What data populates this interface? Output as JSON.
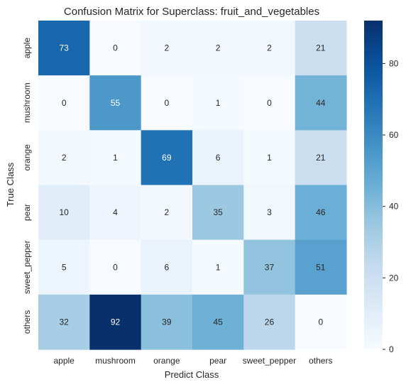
{
  "chart_data": {
    "type": "heatmap",
    "title": "Confusion Matrix for Superclass: fruit_and_vegetables",
    "xlabel": "Predict Class",
    "ylabel": "True Class",
    "x_categories": [
      "apple",
      "mushroom",
      "orange",
      "pear",
      "sweet_pepper",
      "others"
    ],
    "y_categories": [
      "apple",
      "mushroom",
      "orange",
      "pear",
      "sweet_pepper",
      "others"
    ],
    "values": [
      [
        73,
        0,
        2,
        2,
        2,
        21
      ],
      [
        0,
        55,
        0,
        1,
        0,
        44
      ],
      [
        2,
        1,
        69,
        6,
        1,
        21
      ],
      [
        10,
        4,
        2,
        35,
        3,
        46
      ],
      [
        5,
        0,
        6,
        1,
        37,
        51
      ],
      [
        32,
        92,
        39,
        45,
        26,
        0
      ]
    ],
    "colormap": "Blues",
    "vmin": 0,
    "vmax": 92,
    "colorbar_ticks": [
      0,
      20,
      40,
      60,
      80
    ],
    "grid": false
  }
}
